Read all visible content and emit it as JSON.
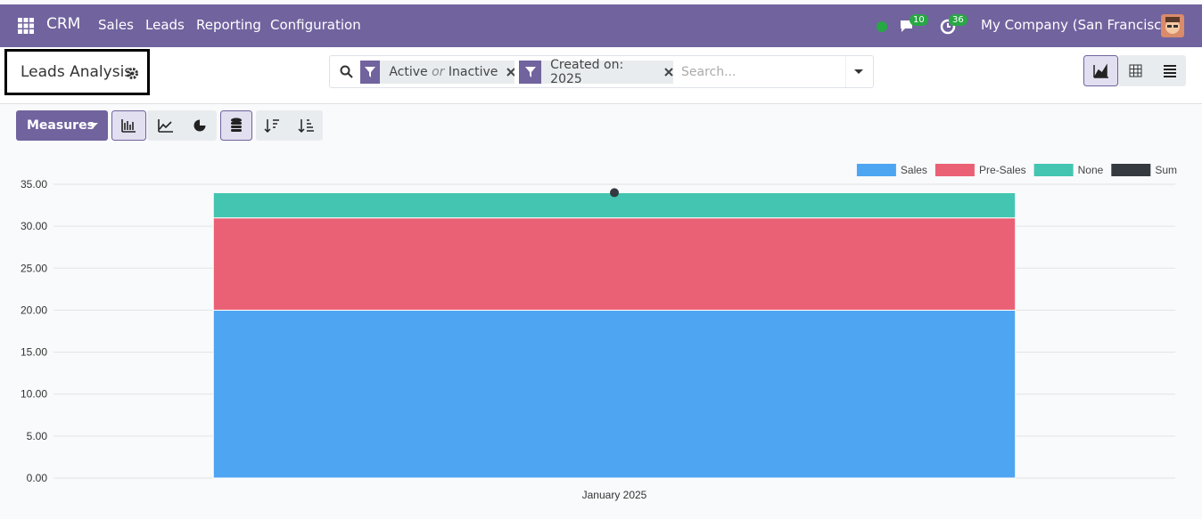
{
  "navbar": {
    "app": "CRM",
    "menu": [
      "Sales",
      "Leads",
      "Reporting",
      "Configuration"
    ],
    "messages_badge": 10,
    "activities_badge": 36,
    "company": "My Company (San Francisco)"
  },
  "control_panel": {
    "title": "Leads Analysis",
    "facets": [
      {
        "values": [
          "Active",
          "Inactive"
        ],
        "separator": "or"
      },
      {
        "values": [
          "Created on: 2025"
        ]
      }
    ],
    "search_placeholder": "Search...",
    "measures": "Measures"
  },
  "chart_data": {
    "type": "bar",
    "stacked": true,
    "categories": [
      "January 2025"
    ],
    "series": [
      {
        "name": "Sales",
        "color": "#4ea5f2",
        "values": [
          20
        ]
      },
      {
        "name": "Pre-Sales",
        "color": "#ea6175",
        "values": [
          11
        ]
      },
      {
        "name": "None",
        "color": "#43c5b1",
        "values": [
          3
        ]
      },
      {
        "name": "Sum",
        "color": "#343a40",
        "type": "line",
        "values": [
          34
        ]
      }
    ],
    "ylim": [
      0,
      35
    ],
    "yticks": [
      {
        "value": 0,
        "label": "0.00"
      },
      {
        "value": 5,
        "label": "5.00"
      },
      {
        "value": 10,
        "label": "10.00"
      },
      {
        "value": 15,
        "label": "15.00"
      },
      {
        "value": 20,
        "label": "20.00"
      },
      {
        "value": 25,
        "label": "25.00"
      },
      {
        "value": 30,
        "label": "30.00"
      },
      {
        "value": 35,
        "label": "35.00"
      }
    ],
    "grid": true,
    "legend": "top-right"
  }
}
